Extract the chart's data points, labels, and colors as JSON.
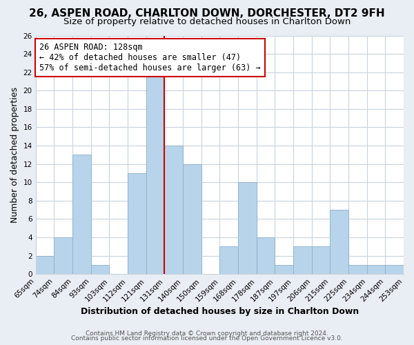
{
  "title": "26, ASPEN ROAD, CHARLTON DOWN, DORCHESTER, DT2 9FH",
  "subtitle": "Size of property relative to detached houses in Charlton Down",
  "xlabel": "Distribution of detached houses by size in Charlton Down",
  "ylabel": "Number of detached properties",
  "footer_line1": "Contains HM Land Registry data © Crown copyright and database right 2024.",
  "footer_line2": "Contains public sector information licensed under the Open Government Licence v3.0.",
  "bin_labels": [
    "65sqm",
    "74sqm",
    "84sqm",
    "93sqm",
    "103sqm",
    "112sqm",
    "121sqm",
    "131sqm",
    "140sqm",
    "150sqm",
    "159sqm",
    "168sqm",
    "178sqm",
    "187sqm",
    "197sqm",
    "206sqm",
    "215sqm",
    "225sqm",
    "234sqm",
    "244sqm",
    "253sqm"
  ],
  "bin_counts": [
    2,
    4,
    13,
    1,
    0,
    11,
    22,
    14,
    12,
    0,
    3,
    10,
    4,
    1,
    3,
    3,
    7,
    1,
    1,
    1,
    1
  ],
  "bar_color": "#b8d4ea",
  "bar_edge_color": "#8ab0cc",
  "reference_line_color": "#cc0000",
  "annotation_text": "26 ASPEN ROAD: 128sqm\n← 42% of detached houses are smaller (47)\n57% of semi-detached houses are larger (63) →",
  "annotation_box_color": "#ffffff",
  "annotation_box_edge_color": "#cc0000",
  "ylim": [
    0,
    26
  ],
  "yticks": [
    0,
    2,
    4,
    6,
    8,
    10,
    12,
    14,
    16,
    18,
    20,
    22,
    24,
    26
  ],
  "figure_background_color": "#e8eef4",
  "plot_background_color": "#ffffff",
  "grid_color": "#c8d4de",
  "title_fontsize": 11,
  "subtitle_fontsize": 9.5,
  "axis_label_fontsize": 9,
  "tick_fontsize": 7.5,
  "annotation_fontsize": 8.5,
  "footer_fontsize": 6.5
}
